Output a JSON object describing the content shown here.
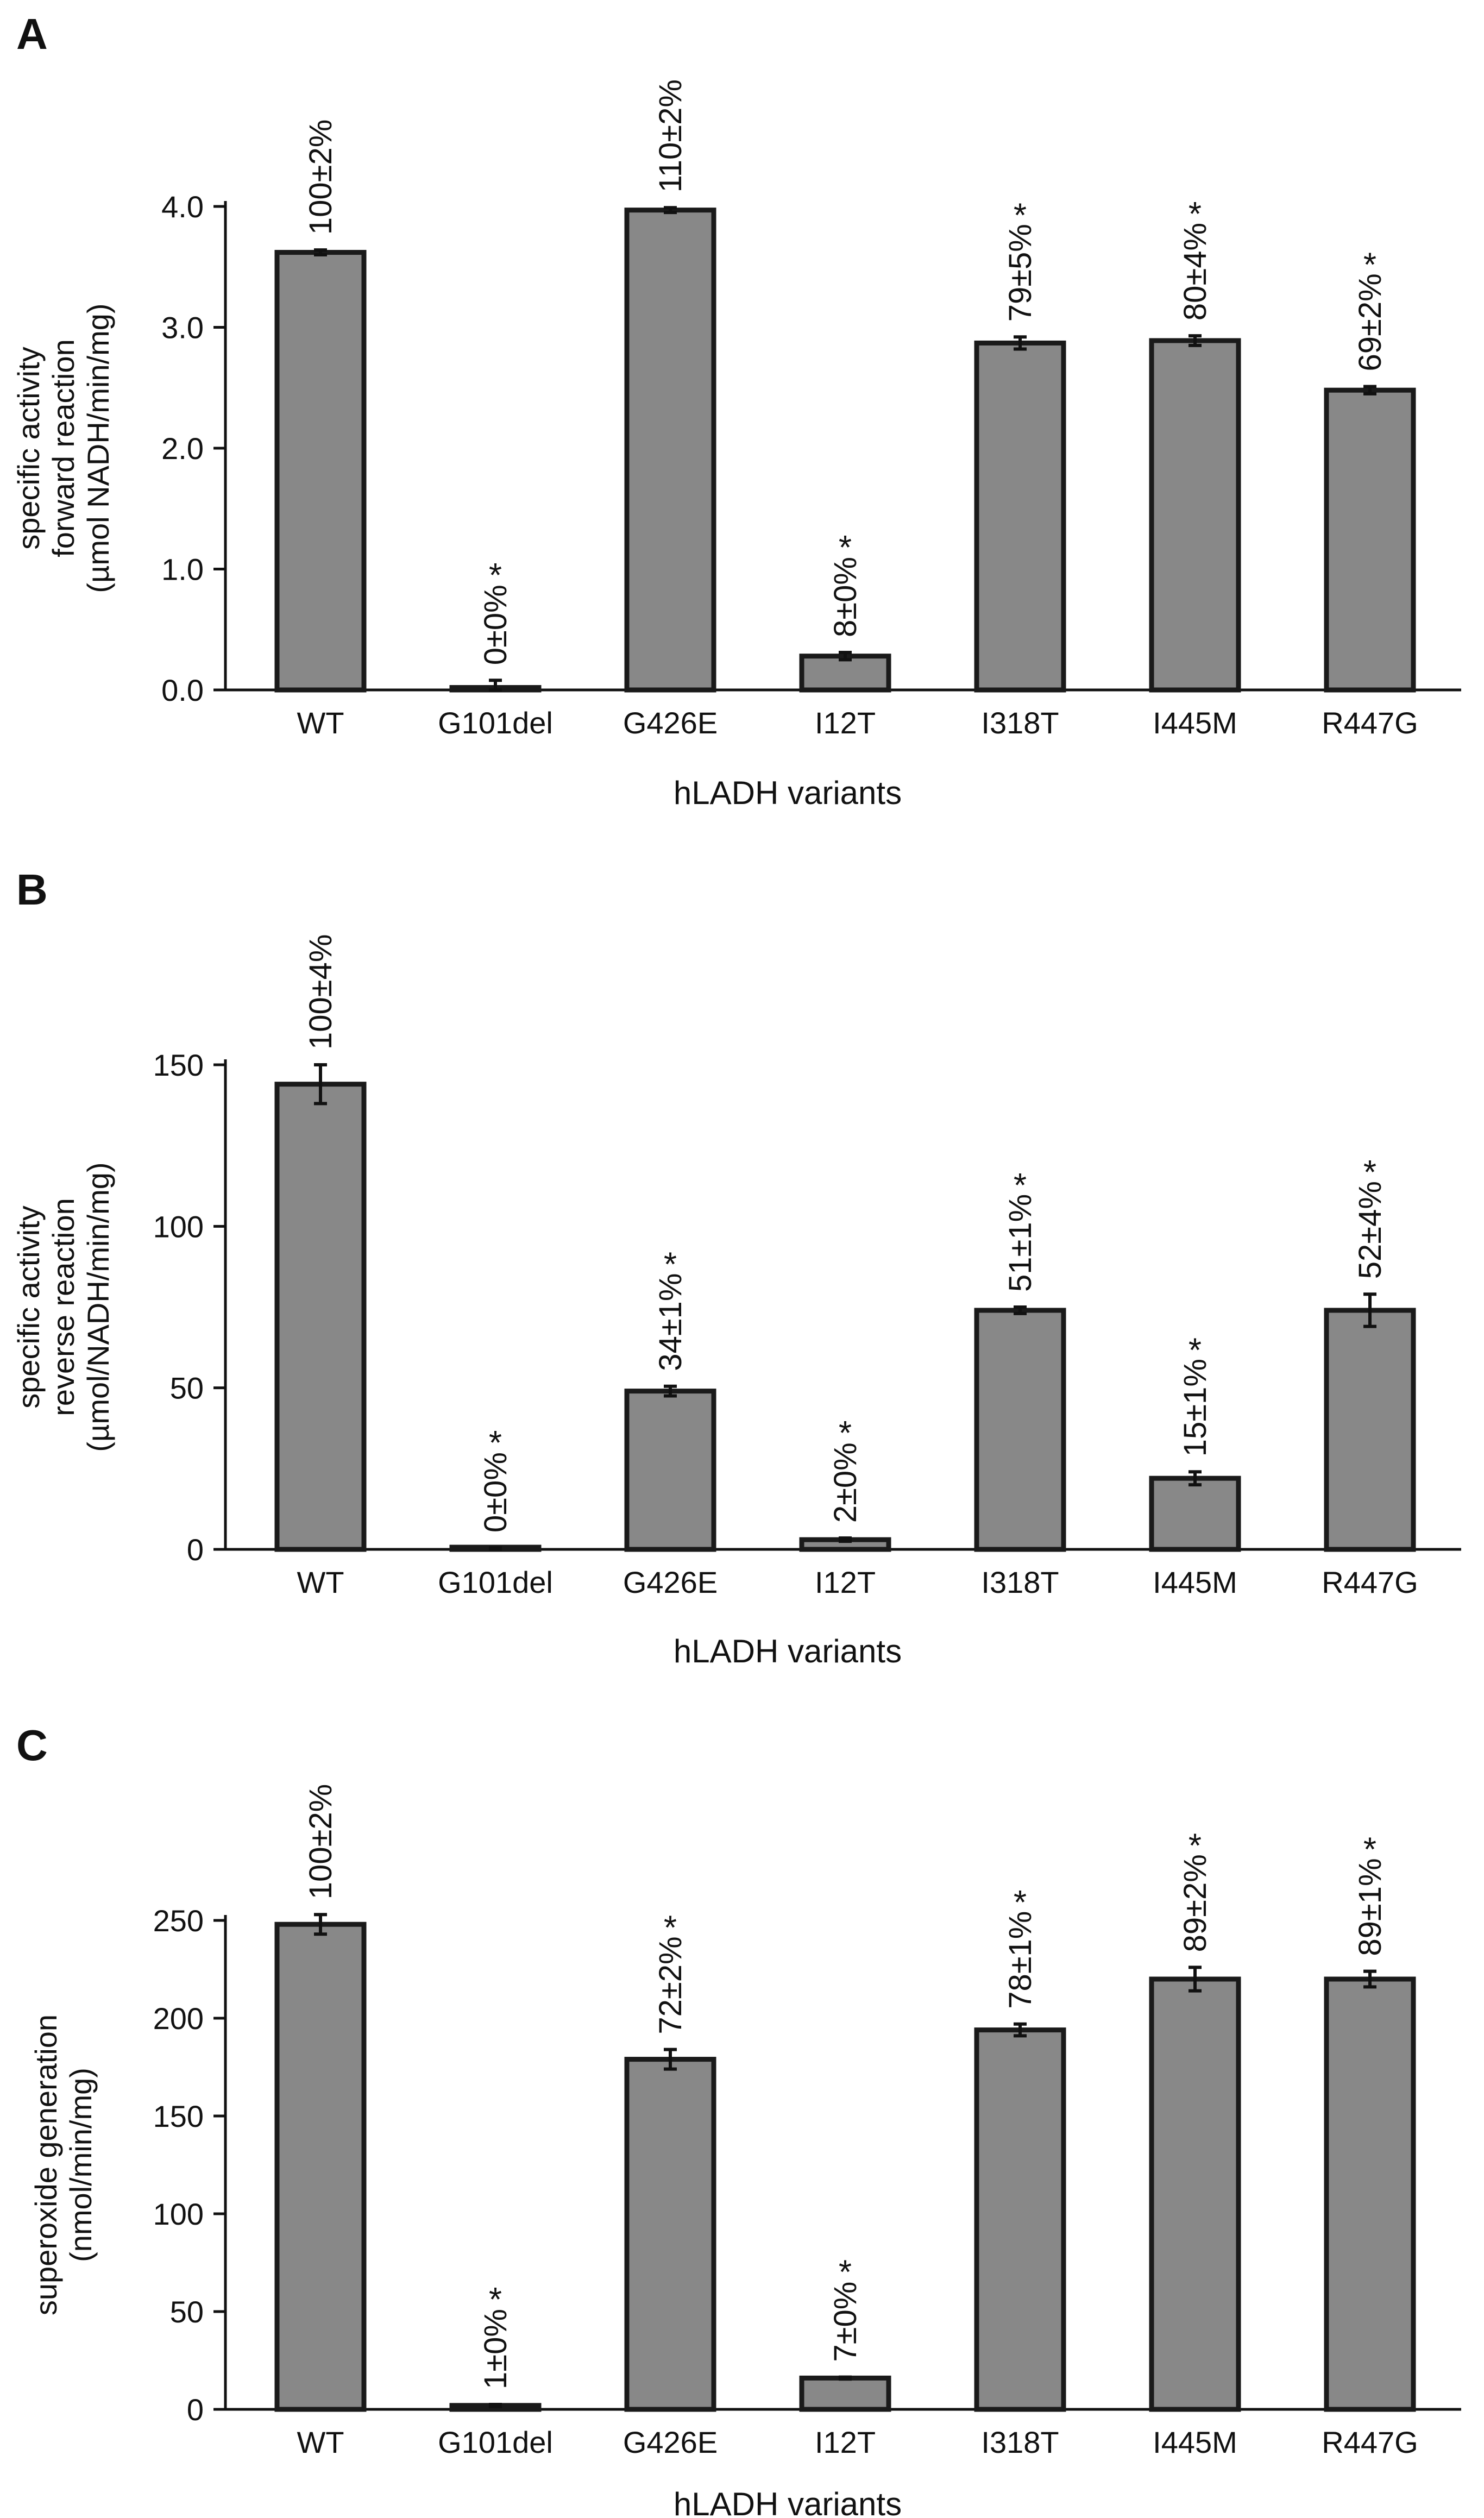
{
  "chart_data": [
    {
      "panel": "A",
      "type": "bar",
      "categories": [
        "WT",
        "G101del",
        "G426E",
        "I12T",
        "I318T",
        "I445M",
        "R447G"
      ],
      "values": [
        3.62,
        0.02,
        3.97,
        0.28,
        2.87,
        2.89,
        2.48
      ],
      "errors": [
        0.02,
        0.06,
        0.02,
        0.03,
        0.05,
        0.04,
        0.03
      ],
      "data_labels": [
        "100±2%",
        "0±0%",
        "110±2%",
        "8±0%",
        "79±5%",
        "80±4%",
        "69±2%"
      ],
      "significant": [
        false,
        true,
        false,
        true,
        true,
        true,
        true
      ],
      "star_label": "*",
      "ylabel_lines": [
        "specific activity",
        "forward reaction",
        "(µmol NADH/min/mg)"
      ],
      "xlabel": "hLADH variants",
      "ylim": [
        0,
        4.0
      ],
      "yticks": [
        0,
        1,
        2,
        3,
        4
      ],
      "ytick_labels": [
        "0.0",
        "1.0",
        "2.0",
        "3.0",
        "4.0"
      ],
      "bar_color": "#888888"
    },
    {
      "panel": "B",
      "type": "bar",
      "categories": [
        "WT",
        "G101del",
        "G426E",
        "I12T",
        "I318T",
        "I445M",
        "R447G"
      ],
      "values": [
        144,
        0.3,
        49,
        3,
        74,
        22,
        74
      ],
      "errors": [
        6,
        0.2,
        1.5,
        0.5,
        1,
        2,
        5
      ],
      "data_labels": [
        "100±4%",
        "0±0%",
        "34±1%",
        "2±0%",
        "51±1%",
        "15±1%",
        "52±4%"
      ],
      "significant": [
        false,
        true,
        true,
        true,
        true,
        true,
        true
      ],
      "star_label": "*",
      "ylabel_lines": [
        "specific activity",
        "reverse reaction",
        "(µmol/NADH/min/mg)"
      ],
      "xlabel": "hLADH variants",
      "ylim": [
        0,
        150
      ],
      "yticks": [
        0,
        50,
        100,
        150
      ],
      "ytick_labels": [
        "0",
        "50",
        "100",
        "150"
      ],
      "bar_color": "#888888"
    },
    {
      "panel": "C",
      "type": "bar",
      "categories": [
        "WT",
        "G101del",
        "G426E",
        "I12T",
        "I318T",
        "I445M",
        "R447G"
      ],
      "values": [
        248,
        2,
        179,
        16,
        194,
        220,
        220
      ],
      "errors": [
        5,
        0.5,
        5,
        0.5,
        3,
        6,
        4
      ],
      "data_labels": [
        "100±2%",
        "1±0%",
        "72±2%",
        "7±0%",
        "78±1%",
        "89±2%",
        "89±1%"
      ],
      "significant": [
        false,
        true,
        true,
        true,
        true,
        true,
        true
      ],
      "star_label": "*",
      "ylabel_lines": [
        "superoxide generation",
        "(nmol/min/mg)"
      ],
      "xlabel": "hLADH variants",
      "ylim": [
        0,
        250
      ],
      "yticks": [
        0,
        50,
        100,
        150,
        200,
        250
      ],
      "ytick_labels": [
        "0",
        "50",
        "100",
        "150",
        "200",
        "250"
      ],
      "bar_color": "#888888"
    }
  ]
}
